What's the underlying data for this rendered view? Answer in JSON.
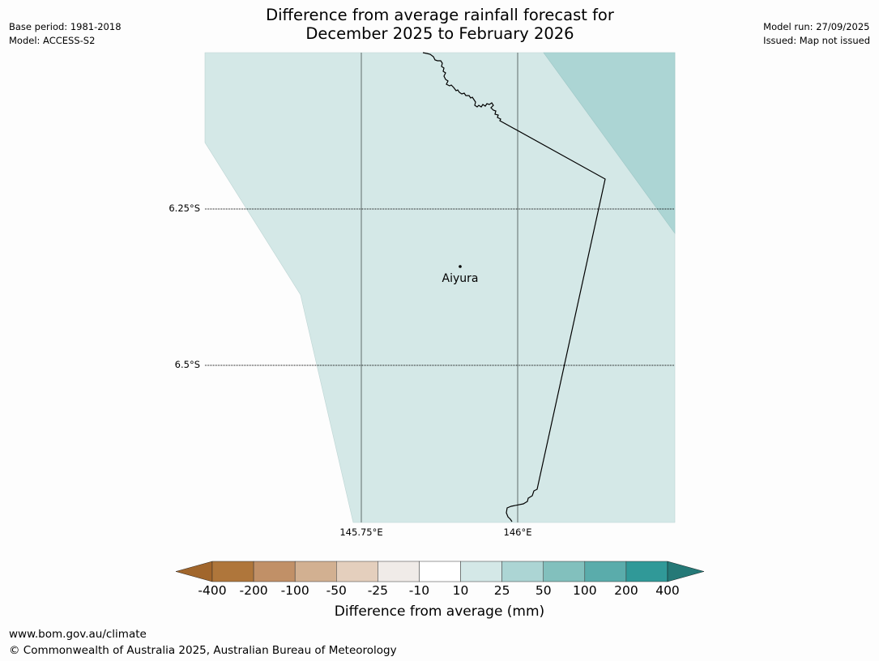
{
  "header": {
    "title_line1": "Difference from average rainfall forecast for",
    "title_line2": "December 2025 to February 2026",
    "base_period": "Base period: 1981-2018",
    "model": "Model: ACCESS-S2",
    "model_run": "Model run: 27/09/2025",
    "issued": "Issued: Map not issued"
  },
  "map": {
    "lat_labels": [
      "6.25°S",
      "6.5°S"
    ],
    "lon_labels": [
      "145.75°E",
      "146°E"
    ],
    "place": {
      "name": "Aiyura"
    },
    "colors": {
      "light_teal": "#d4e8e7",
      "mid_teal": "#acd5d4",
      "border": "#000000",
      "gridline": "#5f6b6b"
    }
  },
  "colorbar": {
    "title": "Difference from average (mm)",
    "ticks": [
      "-400",
      "-200",
      "-100",
      "-50",
      "-25",
      "-10",
      "10",
      "25",
      "50",
      "100",
      "200",
      "400"
    ],
    "colors": [
      "#a1662c",
      "#af763b",
      "#c19067",
      "#d2b091",
      "#e4cfbd",
      "#f0ebe8",
      "#ffffff",
      "#d4e8e7",
      "#acd5d4",
      "#82c0bd",
      "#5aacab",
      "#309998",
      "#257977"
    ]
  },
  "footer": {
    "url": "www.bom.gov.au/climate",
    "copyright": "© Commonwealth of Australia 2025, Australian Bureau of Meteorology"
  }
}
